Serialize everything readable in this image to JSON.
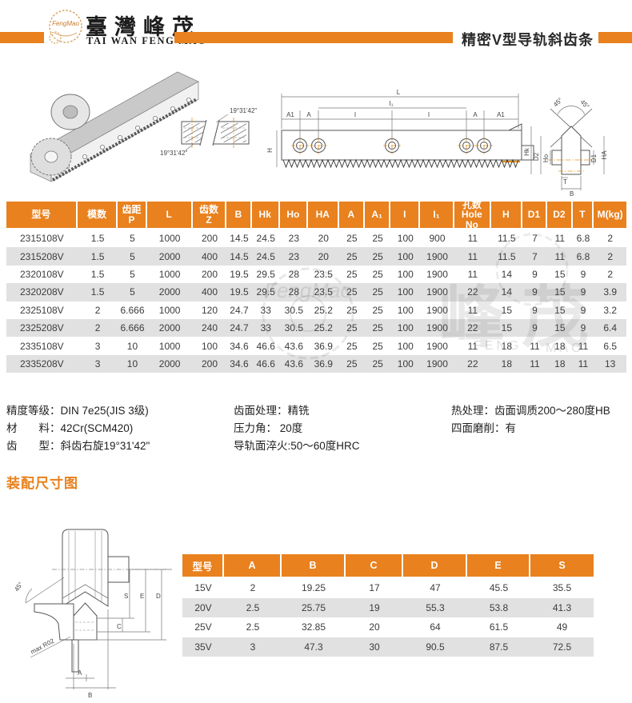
{
  "accent_color": "#E8811E",
  "header": {
    "logo_script": "FengMao",
    "brand_cn": "臺灣峰茂",
    "brand_en": "TAI WAN FENG MAO",
    "page_title": "精密V型导轨斜齿条"
  },
  "drawings": {
    "helix_angle_top": "19°31'42\"",
    "helix_angle_bottom": "19°31'42\"",
    "side_view": {
      "dim_l": "L",
      "dim_l1": "I₁",
      "dim_a1_left": "A1",
      "dim_a_left": "A",
      "dim_i_left": "I",
      "dim_i_right": "I",
      "dim_a_right": "A",
      "dim_a1_right": "A1",
      "dim_h": "H"
    },
    "section": {
      "angle_left": "45°",
      "angle_right": "45°",
      "dim_hk": "Hk",
      "dim_ho": "Ho",
      "dim_d2": "D2",
      "dim_d1": "D1",
      "dim_ha": "HA",
      "dim_t": "T",
      "dim_b": "B"
    },
    "assembly": {
      "angle": "45°",
      "radius_note": "max R02",
      "dim_s": "S",
      "dim_e": "E",
      "dim_d": "D",
      "dim_c": "C",
      "dim_a": "A",
      "dim_b": "B"
    }
  },
  "spec_table": {
    "columns": [
      "型号",
      "模数",
      "齿距\nP",
      "L",
      "齿数\nZ",
      "B",
      "Hk",
      "Ho",
      "HA",
      "A",
      "A₁",
      "I",
      "I₁",
      "孔数\nHole No",
      "H",
      "D1",
      "D2",
      "T",
      "M(kg)"
    ],
    "rows": [
      [
        "2315108V",
        "1.5",
        "5",
        "1000",
        "200",
        "14.5",
        "24.5",
        "23",
        "20",
        "25",
        "25",
        "100",
        "900",
        "11",
        "11.5",
        "7",
        "11",
        "6.8",
        "2"
      ],
      [
        "2315208V",
        "1.5",
        "5",
        "2000",
        "400",
        "14.5",
        "24.5",
        "23",
        "20",
        "25",
        "25",
        "100",
        "1900",
        "11",
        "11.5",
        "7",
        "11",
        "6.8",
        "2"
      ],
      [
        "2320108V",
        "1.5",
        "5",
        "1000",
        "200",
        "19.5",
        "29.5",
        "28",
        "23.5",
        "25",
        "25",
        "100",
        "1900",
        "11",
        "14",
        "9",
        "15",
        "9",
        "2"
      ],
      [
        "2320208V",
        "1.5",
        "5",
        "2000",
        "400",
        "19.5",
        "29.5",
        "28",
        "23.5",
        "25",
        "25",
        "100",
        "1900",
        "22",
        "14",
        "9",
        "15",
        "9",
        "3.9"
      ],
      [
        "2325108V",
        "2",
        "6.666",
        "1000",
        "120",
        "24.7",
        "33",
        "30.5",
        "25.2",
        "25",
        "25",
        "100",
        "1900",
        "11",
        "15",
        "9",
        "15",
        "9",
        "3.2"
      ],
      [
        "2325208V",
        "2",
        "6.666",
        "2000",
        "240",
        "24.7",
        "33",
        "30.5",
        "25.2",
        "25",
        "25",
        "100",
        "1900",
        "22",
        "15",
        "9",
        "15",
        "9",
        "6.4"
      ],
      [
        "2335108V",
        "3",
        "10",
        "1000",
        "100",
        "34.6",
        "46.6",
        "43.6",
        "36.9",
        "25",
        "25",
        "100",
        "1900",
        "11",
        "18",
        "11",
        "18",
        "11",
        "6.5"
      ],
      [
        "2335208V",
        "3",
        "10",
        "2000",
        "200",
        "34.6",
        "46.6",
        "43.6",
        "36.9",
        "25",
        "25",
        "100",
        "1900",
        "22",
        "18",
        "11",
        "18",
        "11",
        "13"
      ]
    ]
  },
  "watermark": {
    "cn": "峰茂",
    "en_left": "FENG",
    "en_right": "MAO",
    "script": "FengMao"
  },
  "notes": {
    "col1": [
      "精度等级：DIN 7e25(JIS 3级)",
      "材　　料：42Cr(SCM420)",
      "齿　　型：斜齿右旋19°31'42\""
    ],
    "col2": [
      "齿面处理：精铣",
      "压力角： 20度",
      "导轨面淬火:50～60度HRC"
    ],
    "col3": [
      "热处理：齿面调质200～280度HB",
      "四面磨削：有"
    ]
  },
  "assembly_section_title": "装配尺寸图",
  "assembly_table": {
    "columns": [
      "型号",
      "A",
      "B",
      "C",
      "D",
      "E",
      "S"
    ],
    "rows": [
      [
        "15V",
        "2",
        "19.25",
        "17",
        "47",
        "45.5",
        "35.5"
      ],
      [
        "20V",
        "2.5",
        "25.75",
        "19",
        "55.3",
        "53.8",
        "41.3"
      ],
      [
        "25V",
        "2.5",
        "32.85",
        "20",
        "64",
        "61.5",
        "49"
      ],
      [
        "35V",
        "3",
        "47.3",
        "30",
        "90.5",
        "87.5",
        "72.5"
      ]
    ]
  }
}
